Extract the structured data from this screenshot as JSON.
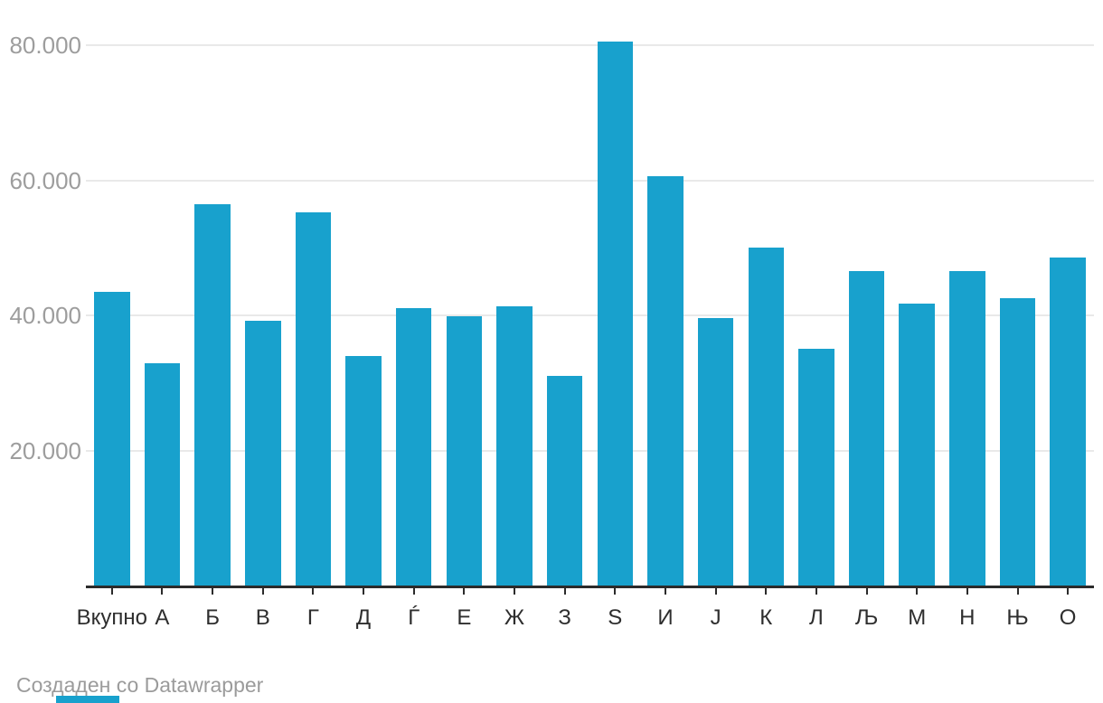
{
  "chart_data": {
    "type": "bar",
    "categories": [
      "Вкупно",
      "А",
      "Б",
      "В",
      "Г",
      "Д",
      "Ѓ",
      "Е",
      "Ж",
      "З",
      "Ѕ",
      "И",
      "Ј",
      "К",
      "Л",
      "Љ",
      "М",
      "Н",
      "Њ",
      "О"
    ],
    "values": [
      43500,
      32900,
      56500,
      39200,
      55200,
      34000,
      41100,
      39800,
      41400,
      31100,
      80500,
      60600,
      39600,
      50100,
      35000,
      46500,
      41700,
      46500,
      42600,
      48600
    ],
    "title": "",
    "xlabel": "",
    "ylabel": "",
    "ylim": [
      0,
      83000
    ],
    "yticks": [
      20000,
      40000,
      60000,
      80000
    ],
    "ytick_labels": [
      "20.000",
      "40.000",
      "60.000",
      "80.000"
    ],
    "grid": "horizontal-only",
    "legend": "none",
    "bar_color": "#18a1cd"
  },
  "footer": {
    "prefix": "Создаден со ",
    "link_label": "Datawrapper"
  },
  "colors": {
    "bar": "#18a1cd",
    "gridline": "#e9e9e9",
    "axis_line": "#2b2b2b",
    "y_tick_text": "#9d9d9d",
    "x_tick_text": "#2e2e2e",
    "footer_text": "#9b9b9b"
  }
}
